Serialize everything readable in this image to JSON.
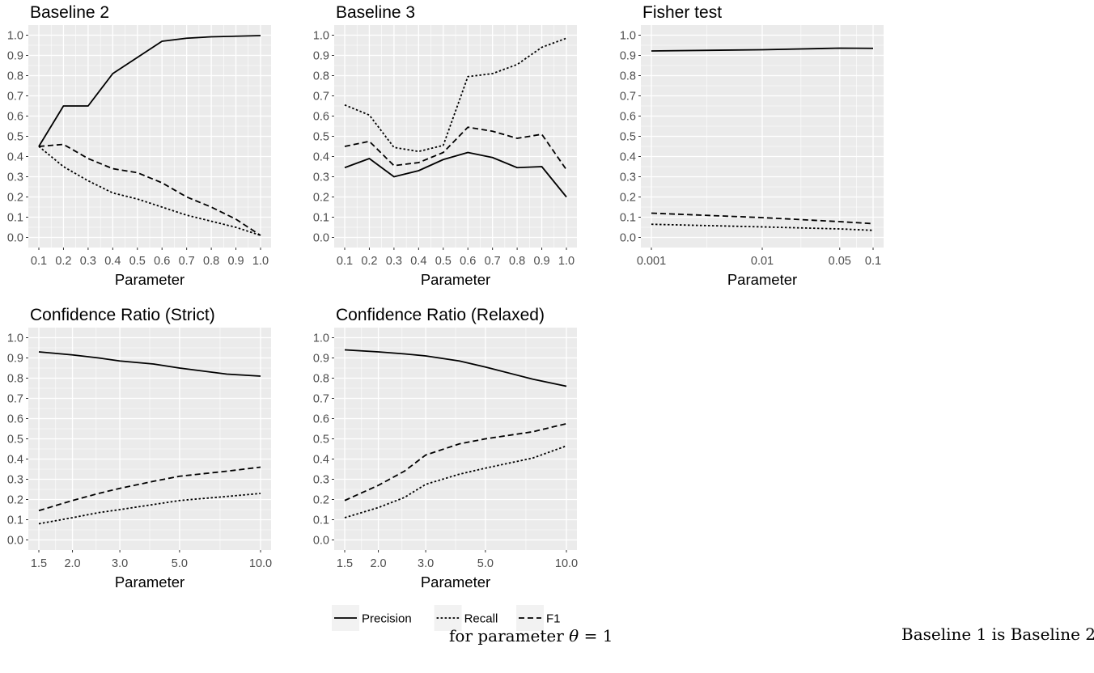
{
  "colors": {
    "panel_bg": "#ebebeb",
    "grid": "#ffffff",
    "line": "#000000",
    "axis_text": "#4d4d4d",
    "title_text": "#000000"
  },
  "x_axis_label": "Parameter",
  "legend": {
    "position": "bottom",
    "items": [
      {
        "name": "Precision",
        "style": "solid"
      },
      {
        "name": "Recall",
        "style": "dotted"
      },
      {
        "name": "F1",
        "style": "dashed"
      }
    ]
  },
  "caption": {
    "line1": "Baseline 1 is Baseline 2",
    "line2_prefix": "for parameter ",
    "line2_symbol": "θ",
    "line2_suffix": " = 1"
  },
  "chart_data": [
    {
      "type": "line",
      "title": "Baseline 2",
      "xlabel": "Parameter",
      "ylabel": "",
      "x_scale": "linear",
      "xlim": [
        0.1,
        1.0
      ],
      "ylim": [
        0.0,
        1.0
      ],
      "x": [
        0.1,
        0.2,
        0.3,
        0.4,
        0.5,
        0.6,
        0.7,
        0.8,
        0.9,
        1.0
      ],
      "x_ticks": [
        0.1,
        0.2,
        0.3,
        0.4,
        0.5,
        0.6,
        0.7,
        0.8,
        0.9,
        1.0
      ],
      "x_tick_labels": [
        "0.1",
        "0.2",
        "0.3",
        "0.4",
        "0.5",
        "0.6",
        "0.7",
        "0.8",
        "0.9",
        "1.0"
      ],
      "y_ticks": [
        0.0,
        0.1,
        0.2,
        0.3,
        0.4,
        0.5,
        0.6,
        0.7,
        0.8,
        0.9,
        1.0
      ],
      "y_tick_labels": [
        "0.0",
        "0.1",
        "0.2",
        "0.3",
        "0.4",
        "0.5",
        "0.6",
        "0.7",
        "0.8",
        "0.9",
        "1.0"
      ],
      "series": [
        {
          "name": "Precision",
          "values": [
            0.45,
            0.65,
            0.65,
            0.81,
            0.89,
            0.97,
            0.985,
            0.992,
            0.995,
            0.998
          ]
        },
        {
          "name": "Recall",
          "values": [
            0.45,
            0.35,
            0.28,
            0.22,
            0.19,
            0.15,
            0.11,
            0.08,
            0.05,
            0.01
          ]
        },
        {
          "name": "F1",
          "values": [
            0.45,
            0.46,
            0.39,
            0.34,
            0.32,
            0.27,
            0.2,
            0.15,
            0.09,
            0.01
          ]
        }
      ]
    },
    {
      "type": "line",
      "title": "Baseline 3",
      "xlabel": "Parameter",
      "ylabel": "",
      "x_scale": "linear",
      "xlim": [
        0.1,
        1.0
      ],
      "ylim": [
        0.0,
        1.0
      ],
      "x": [
        0.1,
        0.2,
        0.3,
        0.4,
        0.5,
        0.6,
        0.7,
        0.8,
        0.9,
        1.0
      ],
      "x_ticks": [
        0.1,
        0.2,
        0.3,
        0.4,
        0.5,
        0.6,
        0.7,
        0.8,
        0.9,
        1.0
      ],
      "x_tick_labels": [
        "0.1",
        "0.2",
        "0.3",
        "0.4",
        "0.5",
        "0.6",
        "0.7",
        "0.8",
        "0.9",
        "1.0"
      ],
      "y_ticks": [
        0.0,
        0.1,
        0.2,
        0.3,
        0.4,
        0.5,
        0.6,
        0.7,
        0.8,
        0.9,
        1.0
      ],
      "y_tick_labels": [
        "0.0",
        "0.1",
        "0.2",
        "0.3",
        "0.4",
        "0.5",
        "0.6",
        "0.7",
        "0.8",
        "0.9",
        "1.0"
      ],
      "series": [
        {
          "name": "Precision",
          "values": [
            0.345,
            0.39,
            0.3,
            0.33,
            0.385,
            0.42,
            0.395,
            0.345,
            0.35,
            0.2
          ]
        },
        {
          "name": "Recall",
          "values": [
            0.655,
            0.605,
            0.445,
            0.425,
            0.455,
            0.795,
            0.81,
            0.855,
            0.94,
            0.985
          ]
        },
        {
          "name": "F1",
          "values": [
            0.45,
            0.475,
            0.355,
            0.37,
            0.42,
            0.545,
            0.525,
            0.49,
            0.51,
            0.335
          ]
        }
      ]
    },
    {
      "type": "line",
      "title": "Fisher test",
      "xlabel": "Parameter",
      "ylabel": "",
      "x_scale": "log",
      "xlim": [
        0.001,
        0.1
      ],
      "ylim": [
        0.0,
        1.0
      ],
      "x": [
        0.001,
        0.01,
        0.05,
        0.1
      ],
      "x_ticks": [
        0.001,
        0.01,
        0.05,
        0.1
      ],
      "x_tick_labels": [
        "0.001",
        "0.01",
        "0.05",
        "0.1"
      ],
      "y_ticks": [
        0.0,
        0.1,
        0.2,
        0.3,
        0.4,
        0.5,
        0.6,
        0.7,
        0.8,
        0.9,
        1.0
      ],
      "y_tick_labels": [
        "0.0",
        "0.1",
        "0.2",
        "0.3",
        "0.4",
        "0.5",
        "0.6",
        "0.7",
        "0.8",
        "0.9",
        "1.0"
      ],
      "series": [
        {
          "name": "Precision",
          "values": [
            0.922,
            0.928,
            0.936,
            0.935
          ]
        },
        {
          "name": "Recall",
          "values": [
            0.065,
            0.052,
            0.042,
            0.035
          ]
        },
        {
          "name": "F1",
          "values": [
            0.12,
            0.098,
            0.078,
            0.068
          ]
        }
      ]
    },
    {
      "type": "line",
      "title": "Confidence Ratio (Strict)",
      "xlabel": "Parameter",
      "ylabel": "",
      "x_scale": "log",
      "xlim": [
        1.5,
        10.0
      ],
      "ylim": [
        0.0,
        1.0
      ],
      "x": [
        1.5,
        2.0,
        2.5,
        3.0,
        4.0,
        5.0,
        7.5,
        10.0
      ],
      "x_ticks": [
        1.5,
        2.0,
        3.0,
        5.0,
        10.0
      ],
      "x_tick_labels": [
        "1.5",
        "2.0",
        "3.0",
        "5.0",
        "10.0"
      ],
      "y_ticks": [
        0.0,
        0.1,
        0.2,
        0.3,
        0.4,
        0.5,
        0.6,
        0.7,
        0.8,
        0.9,
        1.0
      ],
      "y_tick_labels": [
        "0.0",
        "0.1",
        "0.2",
        "0.3",
        "0.4",
        "0.5",
        "0.6",
        "0.7",
        "0.8",
        "0.9",
        "1.0"
      ],
      "series": [
        {
          "name": "Precision",
          "values": [
            0.93,
            0.915,
            0.9,
            0.885,
            0.87,
            0.85,
            0.82,
            0.81
          ]
        },
        {
          "name": "Recall",
          "values": [
            0.08,
            0.11,
            0.135,
            0.15,
            0.175,
            0.195,
            0.215,
            0.23
          ]
        },
        {
          "name": "F1",
          "values": [
            0.145,
            0.195,
            0.23,
            0.255,
            0.29,
            0.315,
            0.34,
            0.36
          ]
        }
      ]
    },
    {
      "type": "line",
      "title": "Confidence Ratio (Relaxed)",
      "xlabel": "Parameter",
      "ylabel": "",
      "x_scale": "log",
      "xlim": [
        1.5,
        10.0
      ],
      "ylim": [
        0.0,
        1.0
      ],
      "x": [
        1.5,
        2.0,
        2.5,
        3.0,
        4.0,
        5.0,
        7.5,
        10.0
      ],
      "x_ticks": [
        1.5,
        2.0,
        3.0,
        5.0,
        10.0
      ],
      "x_tick_labels": [
        "1.5",
        "2.0",
        "3.0",
        "5.0",
        "10.0"
      ],
      "y_ticks": [
        0.0,
        0.1,
        0.2,
        0.3,
        0.4,
        0.5,
        0.6,
        0.7,
        0.8,
        0.9,
        1.0
      ],
      "y_tick_labels": [
        "0.0",
        "0.1",
        "0.2",
        "0.3",
        "0.4",
        "0.5",
        "0.6",
        "0.7",
        "0.8",
        "0.9",
        "1.0"
      ],
      "series": [
        {
          "name": "Precision",
          "values": [
            0.94,
            0.93,
            0.92,
            0.91,
            0.885,
            0.855,
            0.795,
            0.76
          ]
        },
        {
          "name": "Recall",
          "values": [
            0.11,
            0.16,
            0.21,
            0.275,
            0.325,
            0.355,
            0.405,
            0.465
          ]
        },
        {
          "name": "F1",
          "values": [
            0.195,
            0.27,
            0.34,
            0.42,
            0.475,
            0.5,
            0.535,
            0.575
          ]
        }
      ]
    }
  ]
}
